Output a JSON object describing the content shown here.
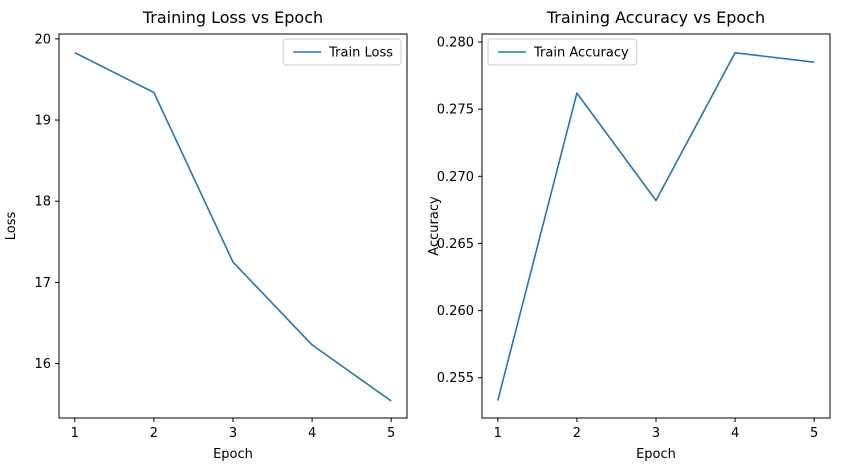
{
  "colors": {
    "series": "#1f77b4"
  },
  "chart_data": [
    {
      "type": "line",
      "title": "Training Loss vs Epoch",
      "xlabel": "Epoch",
      "ylabel": "Loss",
      "xlim": [
        0.8,
        5.2
      ],
      "ylim": [
        15.33,
        20.06
      ],
      "xticks": [
        1,
        2,
        3,
        4,
        5
      ],
      "yticks": [
        16,
        17,
        18,
        19,
        20
      ],
      "yticks_decimals": 0,
      "legend_position": "upper-right",
      "grid": false,
      "series": [
        {
          "name": "Train Loss",
          "x": [
            1,
            2,
            3,
            4,
            5
          ],
          "y": [
            19.83,
            19.34,
            17.25,
            16.23,
            15.54
          ]
        }
      ]
    },
    {
      "type": "line",
      "title": "Training Accuracy vs Epoch",
      "xlabel": "Epoch",
      "ylabel": "Accuracy",
      "xlim": [
        0.8,
        5.2
      ],
      "ylim": [
        0.252,
        0.2806
      ],
      "xticks": [
        1,
        2,
        3,
        4,
        5
      ],
      "yticks": [
        0.255,
        0.26,
        0.265,
        0.27,
        0.275,
        0.28
      ],
      "yticks_decimals": 3,
      "legend_position": "upper-left",
      "grid": false,
      "series": [
        {
          "name": "Train Accuracy",
          "x": [
            1,
            2,
            3,
            4,
            5
          ],
          "y": [
            0.2533,
            0.2762,
            0.2682,
            0.2792,
            0.2785
          ]
        }
      ]
    }
  ]
}
